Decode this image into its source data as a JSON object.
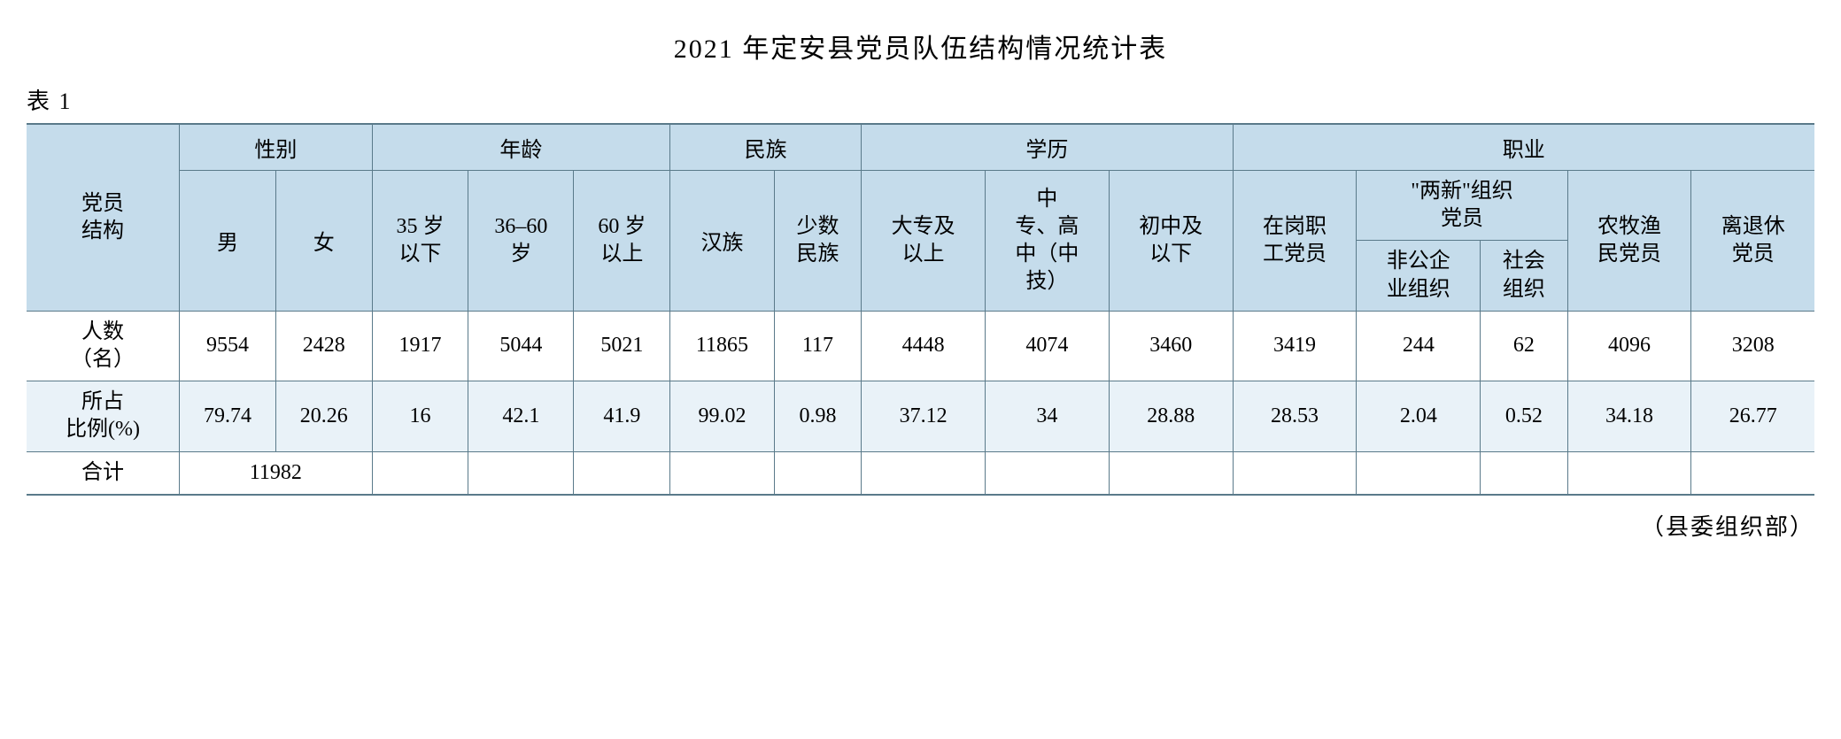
{
  "title": "2021 年定安县党员队伍结构情况统计表",
  "table_label": "表 1",
  "source": "（县委组织部）",
  "headers": {
    "row_header": "党员\n结构",
    "groups": {
      "gender": "性别",
      "age": "年龄",
      "ethnicity": "民族",
      "education": "学历",
      "occupation": "职业"
    },
    "sub": {
      "male": "男",
      "female": "女",
      "age_35": "35 岁\n以下",
      "age_36_60": "36–60\n岁",
      "age_60": "60 岁\n以上",
      "han": "汉族",
      "minority": "少数\n民族",
      "edu_college": "大专及\n以上",
      "edu_high": "中\n专、高\n中（中\n技）",
      "edu_junior": "初中及\n以下",
      "job_onpost": "在岗职\n工党员",
      "job_twonew": "\"两新\"组织\n党员",
      "job_nonpublic": "非公企\n业组织",
      "job_social": "社会\n组织",
      "job_farmer": "农牧渔\n民党员",
      "job_retired": "离退休\n党员"
    }
  },
  "rows": {
    "count_label": "人数\n（名）",
    "percent_label": "所占\n比例(%)",
    "total_label": "合计"
  },
  "data": {
    "count": {
      "male": "9554",
      "female": "2428",
      "age_35": "1917",
      "age_36_60": "5044",
      "age_60": "5021",
      "han": "11865",
      "minority": "117",
      "edu_college": "4448",
      "edu_high": "4074",
      "edu_junior": "3460",
      "job_onpost": "3419",
      "job_nonpublic": "244",
      "job_social": "62",
      "job_farmer": "4096",
      "job_retired": "3208"
    },
    "percent": {
      "male": "79.74",
      "female": "20.26",
      "age_35": "16",
      "age_36_60": "42.1",
      "age_60": "41.9",
      "han": "99.02",
      "minority": "0.98",
      "edu_college": "37.12",
      "edu_high": "34",
      "edu_junior": "28.88",
      "job_onpost": "28.53",
      "job_nonpublic": "2.04",
      "job_social": "0.52",
      "job_farmer": "34.18",
      "job_retired": "26.77"
    },
    "total": "11982"
  },
  "colors": {
    "header_bg": "#c5dceb",
    "percent_bg": "#e9f2f8",
    "border": "#5a7a8a",
    "text": "#000000",
    "background": "#ffffff"
  }
}
